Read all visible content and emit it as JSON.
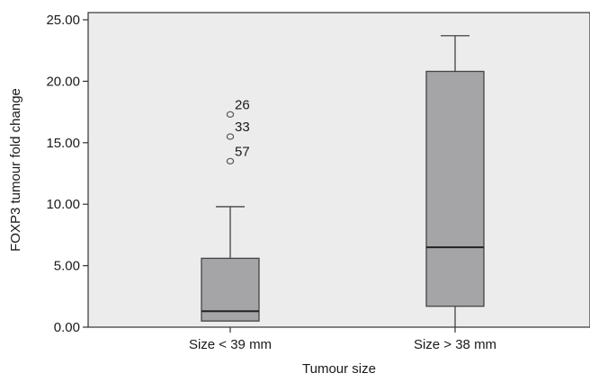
{
  "chart_data": {
    "type": "box",
    "xlabel": "Tumour size",
    "ylabel": "FOXP3 tumour fold change",
    "ylim": [
      0,
      25
    ],
    "yticks": [
      "0.00",
      "5.00",
      "10.00",
      "15.00",
      "20.00",
      "25.00"
    ],
    "yticks_values": [
      0,
      5,
      10,
      15,
      20,
      25
    ],
    "categories": [
      "Size < 39 mm",
      "Size > 38 mm"
    ],
    "boxes": [
      {
        "category": "Size < 39 mm",
        "whisker_low": 0.5,
        "q1": 0.5,
        "median": 1.3,
        "q3": 5.6,
        "whisker_high": 9.8,
        "outliers": [
          {
            "label": "26",
            "value": 17.3
          },
          {
            "label": "33",
            "value": 15.5
          },
          {
            "label": "57",
            "value": 13.5
          }
        ]
      },
      {
        "category": "Size > 38 mm",
        "whisker_low": 0.0,
        "q1": 1.7,
        "median": 6.5,
        "q3": 20.8,
        "whisker_high": 23.7,
        "outliers": []
      }
    ],
    "colors": {
      "plot_background": "#ececec",
      "box_fill": "#a5a5a8",
      "box_stroke": "#444444",
      "median": "#222222"
    }
  }
}
